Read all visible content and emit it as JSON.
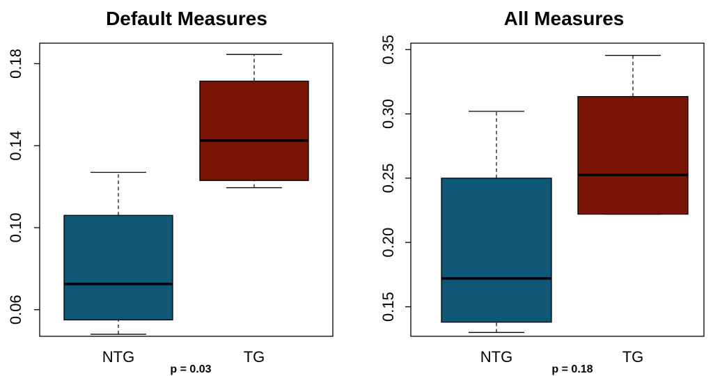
{
  "chart_data": [
    {
      "type": "box",
      "title": "Default Measures",
      "categories": [
        "NTG",
        "TG"
      ],
      "ylim": [
        0.047,
        0.19
      ],
      "yticks": [
        0.06,
        0.1,
        0.14,
        0.18
      ],
      "ytick_labels": [
        "0.06",
        "0.10",
        "0.14",
        "0.18"
      ],
      "boxes": [
        {
          "category": "NTG",
          "min": 0.048,
          "q1": 0.055,
          "median": 0.0725,
          "q3": 0.106,
          "max": 0.127,
          "color": "#0e5777"
        },
        {
          "category": "TG",
          "min": 0.1195,
          "q1": 0.123,
          "median": 0.1425,
          "q3": 0.1715,
          "max": 0.1845,
          "color": "#7a1505"
        }
      ],
      "annotation": "p = 0.03"
    },
    {
      "type": "box",
      "title": "All Measures",
      "categories": [
        "NTG",
        "TG"
      ],
      "ylim": [
        0.127,
        0.355
      ],
      "yticks": [
        0.15,
        0.2,
        0.25,
        0.3,
        0.35
      ],
      "ytick_labels": [
        "0.15",
        "0.20",
        "0.25",
        "0.30",
        "0.35"
      ],
      "boxes": [
        {
          "category": "NTG",
          "min": 0.13,
          "q1": 0.138,
          "median": 0.172,
          "q3": 0.25,
          "max": 0.302,
          "color": "#0e5777"
        },
        {
          "category": "TG",
          "min": 0.222,
          "q1": 0.222,
          "median": 0.2525,
          "q3": 0.3135,
          "max": 0.3455,
          "color": "#7a1505"
        }
      ],
      "annotation": "p = 0.18"
    }
  ]
}
